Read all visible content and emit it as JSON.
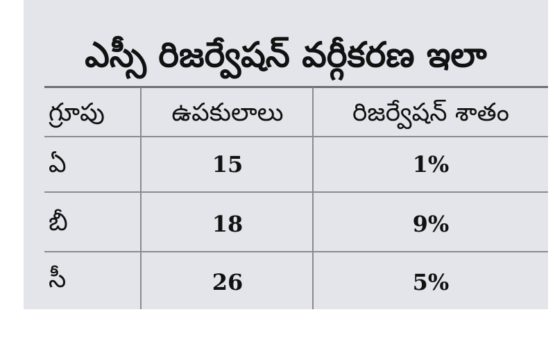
{
  "title": "ఎస్సీ రిజర్వేషన్ వర్గీకరణ ఇలా",
  "table": {
    "headers": {
      "group": "గ్రూపు",
      "subcastes": "ఉపకులాలు",
      "reservation": "రిజర్వేషన్ శాతం"
    },
    "rows": [
      {
        "group": "ఏ",
        "subcastes": "15",
        "reservation": "1%"
      },
      {
        "group": "బీ",
        "subcastes": "18",
        "reservation": "9%"
      },
      {
        "group": "సీ",
        "subcastes": "26",
        "reservation": "5%"
      }
    ]
  }
}
